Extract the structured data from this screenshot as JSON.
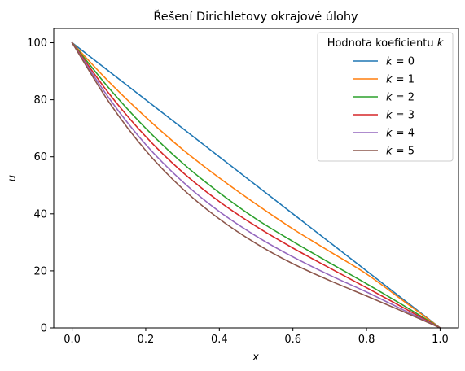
{
  "chart_data": {
    "type": "line",
    "title": "Řešení Dirichletovy okrajové úlohy",
    "xlabel": "x",
    "ylabel": "u",
    "xlim": [
      -0.05,
      1.05
    ],
    "ylim": [
      0,
      105
    ],
    "xticks": [
      "0.0",
      "0.2",
      "0.4",
      "0.6",
      "0.8",
      "1.0"
    ],
    "yticks": [
      "0",
      "20",
      "40",
      "60",
      "80",
      "100"
    ],
    "grid": false,
    "legend": {
      "title": "Hodnota koeficientu k",
      "position": "top-right"
    },
    "series": [
      {
        "name": "k = 0",
        "color": "#1f77b4",
        "x": [
          0,
          0.1,
          0.2,
          0.3,
          0.4,
          0.5,
          0.6,
          0.7,
          0.8,
          0.9,
          1.0
        ],
        "y": [
          100,
          90,
          80,
          70,
          60,
          50,
          40,
          30,
          20,
          10,
          0
        ]
      },
      {
        "name": "k = 1",
        "color": "#ff7f0e",
        "x": [
          0,
          0.1,
          0.2,
          0.3,
          0.4,
          0.5,
          0.6,
          0.7,
          0.8,
          0.9,
          1.0
        ],
        "y": [
          100,
          86.3,
          73.9,
          62.6,
          52.6,
          43.4,
          34.7,
          26.8,
          18.9,
          9.5,
          0
        ]
      },
      {
        "name": "k = 2",
        "color": "#2ca02c",
        "x": [
          0,
          0.1,
          0.2,
          0.3,
          0.4,
          0.5,
          0.6,
          0.7,
          0.8,
          0.9,
          1.0
        ],
        "y": [
          100,
          84.1,
          70.0,
          57.8,
          47.4,
          38.2,
          30.3,
          22.8,
          15.5,
          7.9,
          0
        ]
      },
      {
        "name": "k = 3",
        "color": "#d62728",
        "x": [
          0,
          0.1,
          0.2,
          0.3,
          0.4,
          0.5,
          0.6,
          0.7,
          0.8,
          0.9,
          1.0
        ],
        "y": [
          100,
          82.2,
          67.1,
          54.6,
          44.3,
          35.6,
          28.0,
          21.0,
          14.1,
          7.1,
          0
        ]
      },
      {
        "name": "k = 4",
        "color": "#9467bd",
        "x": [
          0,
          0.1,
          0.2,
          0.3,
          0.4,
          0.5,
          0.6,
          0.7,
          0.8,
          0.9,
          1.0
        ],
        "y": [
          100,
          80.6,
          64.3,
          51.3,
          40.8,
          32.2,
          24.9,
          18.5,
          12.6,
          6.3,
          0
        ]
      },
      {
        "name": "k = 5",
        "color": "#8c564b",
        "x": [
          0,
          0.1,
          0.2,
          0.3,
          0.4,
          0.5,
          0.6,
          0.7,
          0.8,
          0.9,
          1.0
        ],
        "y": [
          100,
          79.2,
          62.2,
          48.8,
          38.2,
          29.6,
          22.5,
          16.6,
          11.2,
          5.7,
          0
        ]
      }
    ]
  }
}
